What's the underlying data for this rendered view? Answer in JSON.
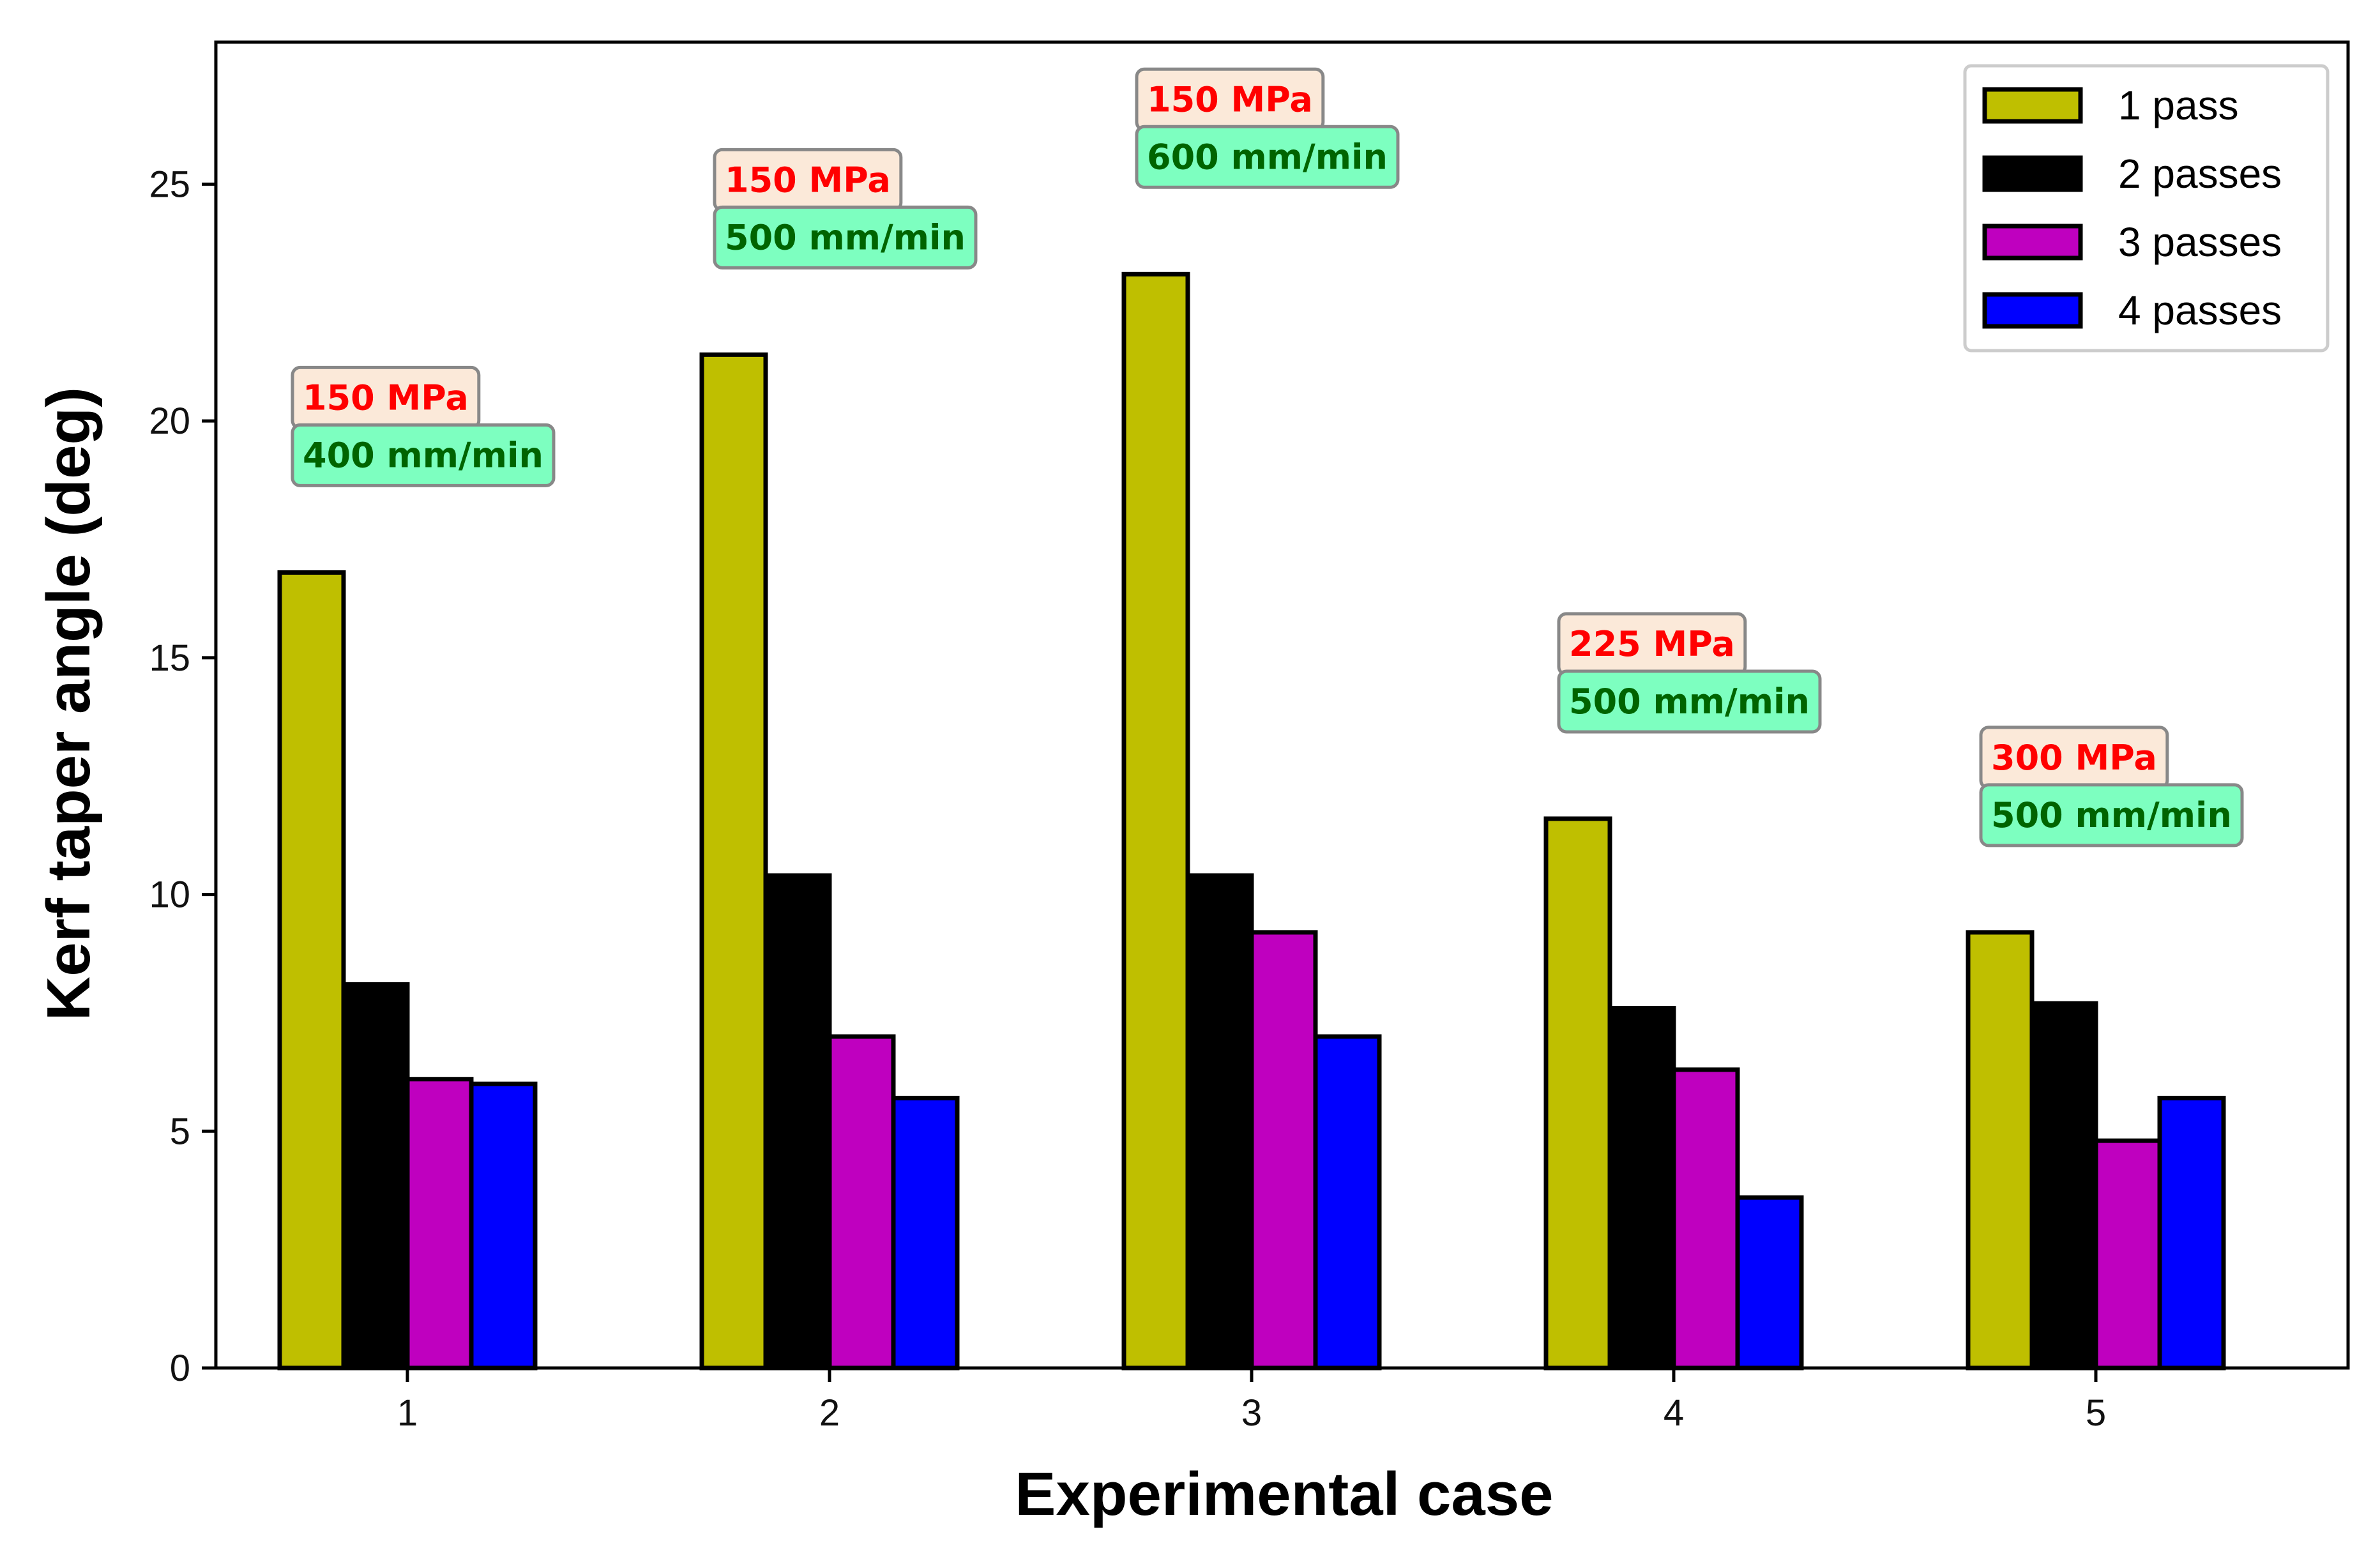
{
  "chart_data": {
    "type": "bar",
    "title": "",
    "xlabel": "Experimental case",
    "ylabel": "Kerf taper angle (deg)",
    "categories": [
      "1",
      "2",
      "3",
      "4",
      "5"
    ],
    "ylim": [
      0,
      28
    ],
    "yticks": [
      0,
      5,
      10,
      15,
      20,
      25
    ],
    "grid": false,
    "legend_position": "top-right",
    "series": [
      {
        "name": "1 pass",
        "color": "#bfbf00",
        "values": [
          16.8,
          21.4,
          23.1,
          11.6,
          9.2
        ]
      },
      {
        "name": "2 passes",
        "color": "#000000",
        "values": [
          8.1,
          10.4,
          10.4,
          7.6,
          7.7
        ]
      },
      {
        "name": "3 passes",
        "color": "#bf00bf",
        "values": [
          6.1,
          7.0,
          9.2,
          6.3,
          4.8
        ]
      },
      {
        "name": "4 passes",
        "color": "#0000ff",
        "values": [
          6.0,
          5.7,
          7.0,
          3.6,
          5.7
        ]
      }
    ],
    "annotations": [
      {
        "category": "1",
        "pressure": "150 MPa",
        "speed": "400 mm/min"
      },
      {
        "category": "2",
        "pressure": "150 MPa",
        "speed": "500 mm/min"
      },
      {
        "category": "3",
        "pressure": "150 MPa",
        "speed": "600 mm/min"
      },
      {
        "category": "4",
        "pressure": "225 MPa",
        "speed": "500 mm/min"
      },
      {
        "category": "5",
        "pressure": "300 MPa",
        "speed": "500 mm/min"
      }
    ],
    "annotation_colors": {
      "pressure_text": "#ff0000",
      "pressure_box": "#fbe9d9",
      "speed_text": "#006400",
      "speed_box": "#7dffc0"
    }
  }
}
